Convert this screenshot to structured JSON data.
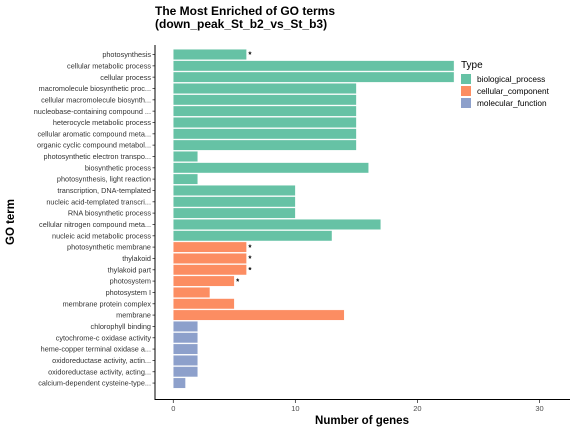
{
  "chart_data": {
    "type": "bar",
    "orientation": "horizontal",
    "title_lines": [
      "The Most Enriched of GO terms",
      "(down_peak_St_b2_vs_St_b3)"
    ],
    "xlabel": "Number of genes",
    "ylabel": "GO term",
    "xlim": [
      -1.5,
      32.5
    ],
    "xticks": [
      0,
      10,
      20,
      30
    ],
    "grid": false,
    "legend": {
      "title": "Type",
      "placement": "right",
      "entries": [
        {
          "label": "biological_process",
          "color": "#66C2A5"
        },
        {
          "label": "cellular_component",
          "color": "#FC8D62"
        },
        {
          "label": "molecular_function",
          "color": "#8DA0CB"
        }
      ]
    },
    "bars": [
      {
        "label": "photosynthesis",
        "value": 6,
        "type": "biological_process",
        "star": true
      },
      {
        "label": "cellular metabolic process",
        "value": 23,
        "type": "biological_process",
        "star": false
      },
      {
        "label": "cellular process",
        "value": 23,
        "type": "biological_process",
        "star": false
      },
      {
        "label": "macromolecule biosynthetic proc...",
        "value": 15,
        "type": "biological_process",
        "star": false
      },
      {
        "label": "cellular macromolecule biosynth...",
        "value": 15,
        "type": "biological_process",
        "star": false
      },
      {
        "label": "nucleobase-containing compound ...",
        "value": 15,
        "type": "biological_process",
        "star": false
      },
      {
        "label": "heterocycle metabolic process",
        "value": 15,
        "type": "biological_process",
        "star": false
      },
      {
        "label": "cellular aromatic compound meta...",
        "value": 15,
        "type": "biological_process",
        "star": false
      },
      {
        "label": "organic cyclic compound metabol...",
        "value": 15,
        "type": "biological_process",
        "star": false
      },
      {
        "label": "photosynthetic electron transpo...",
        "value": 2,
        "type": "biological_process",
        "star": false
      },
      {
        "label": "biosynthetic process",
        "value": 16,
        "type": "biological_process",
        "star": false
      },
      {
        "label": "photosynthesis, light reaction",
        "value": 2,
        "type": "biological_process",
        "star": false
      },
      {
        "label": "transcription, DNA-templated",
        "value": 10,
        "type": "biological_process",
        "star": false
      },
      {
        "label": "nucleic acid-templated transcri...",
        "value": 10,
        "type": "biological_process",
        "star": false
      },
      {
        "label": "RNA biosynthetic process",
        "value": 10,
        "type": "biological_process",
        "star": false
      },
      {
        "label": "cellular nitrogen compound meta...",
        "value": 17,
        "type": "biological_process",
        "star": false
      },
      {
        "label": "nucleic acid metabolic process",
        "value": 13,
        "type": "biological_process",
        "star": false
      },
      {
        "label": "photosynthetic membrane",
        "value": 6,
        "type": "cellular_component",
        "star": true
      },
      {
        "label": "thylakoid",
        "value": 6,
        "type": "cellular_component",
        "star": true
      },
      {
        "label": "thylakoid part",
        "value": 6,
        "type": "cellular_component",
        "star": true
      },
      {
        "label": "photosystem",
        "value": 5,
        "type": "cellular_component",
        "star": true
      },
      {
        "label": "photosystem I",
        "value": 3,
        "type": "cellular_component",
        "star": false
      },
      {
        "label": "membrane protein complex",
        "value": 5,
        "type": "cellular_component",
        "star": false
      },
      {
        "label": "membrane",
        "value": 14,
        "type": "cellular_component",
        "star": false
      },
      {
        "label": "chlorophyll binding",
        "value": 2,
        "type": "molecular_function",
        "star": false
      },
      {
        "label": "cytochrome-c oxidase activity",
        "value": 2,
        "type": "molecular_function",
        "star": false
      },
      {
        "label": "heme-copper terminal oxidase a...",
        "value": 2,
        "type": "molecular_function",
        "star": false
      },
      {
        "label": "oxidoreductase activity, actin...",
        "value": 2,
        "type": "molecular_function",
        "star": false
      },
      {
        "label": "oxidoreductase activity, acting...",
        "value": 2,
        "type": "molecular_function",
        "star": false
      },
      {
        "label": "calcium-dependent cysteine-type...",
        "value": 1,
        "type": "molecular_function",
        "star": false
      }
    ],
    "star_symbol": "*"
  }
}
